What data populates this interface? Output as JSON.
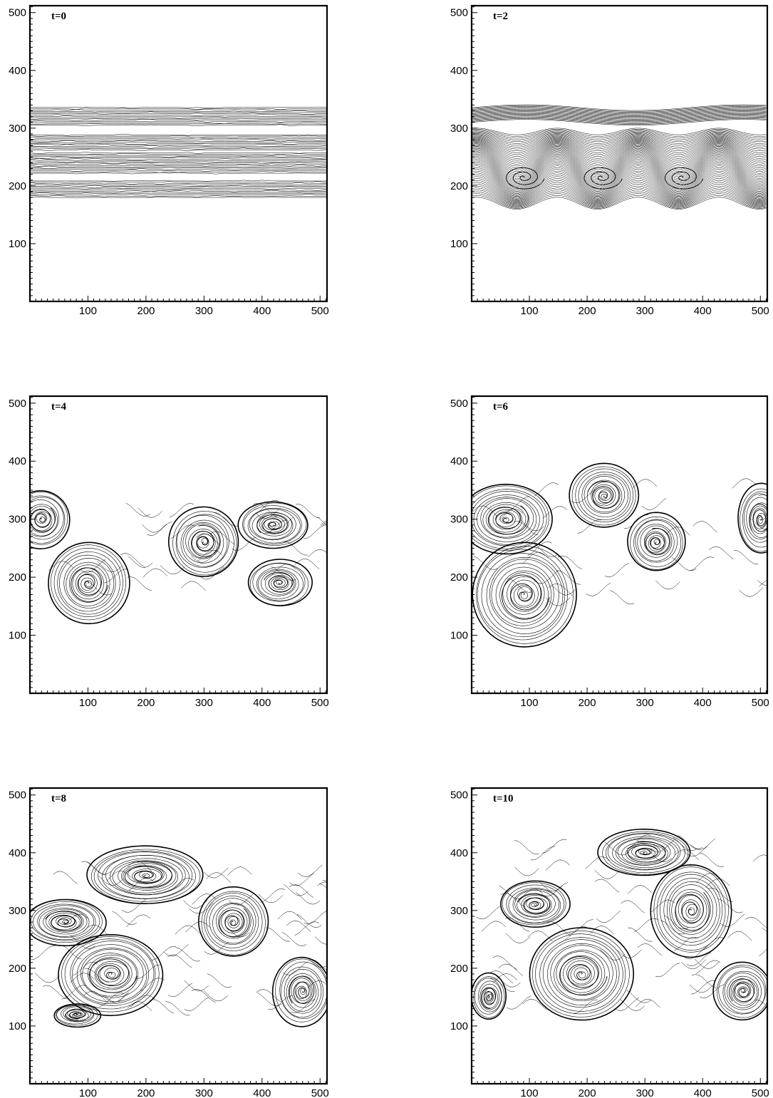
{
  "chart_data": [
    {
      "type": "contour",
      "label": "t=0",
      "xlim": [
        0,
        512
      ],
      "ylim": [
        0,
        512
      ],
      "xticks": [
        100,
        200,
        300,
        400,
        500
      ],
      "yticks": [
        100,
        200,
        300,
        400,
        500
      ],
      "phase": 0
    },
    {
      "type": "contour",
      "label": "t=2",
      "xlim": [
        0,
        512
      ],
      "ylim": [
        0,
        512
      ],
      "xticks": [
        100,
        200,
        300,
        400,
        500
      ],
      "yticks": [
        100,
        200,
        300,
        400,
        500
      ],
      "phase": 1
    },
    {
      "type": "contour",
      "label": "t=4",
      "xlim": [
        0,
        512
      ],
      "ylim": [
        0,
        512
      ],
      "xticks": [
        100,
        200,
        300,
        400,
        500
      ],
      "yticks": [
        100,
        200,
        300,
        400,
        500
      ],
      "phase": 2
    },
    {
      "type": "contour",
      "label": "t=6",
      "xlim": [
        0,
        512
      ],
      "ylim": [
        0,
        512
      ],
      "xticks": [
        100,
        200,
        300,
        400,
        500
      ],
      "yticks": [
        100,
        200,
        300,
        400,
        500
      ],
      "phase": 3
    },
    {
      "type": "contour",
      "label": "t=8",
      "xlim": [
        0,
        512
      ],
      "ylim": [
        0,
        512
      ],
      "xticks": [
        100,
        200,
        300,
        400,
        500
      ],
      "yticks": [
        100,
        200,
        300,
        400,
        500
      ],
      "phase": 4
    },
    {
      "type": "contour",
      "label": "t=10",
      "xlim": [
        0,
        512
      ],
      "ylim": [
        0,
        512
      ],
      "xticks": [
        100,
        200,
        300,
        400,
        500
      ],
      "yticks": [
        100,
        200,
        300,
        400,
        500
      ],
      "phase": 5
    }
  ]
}
